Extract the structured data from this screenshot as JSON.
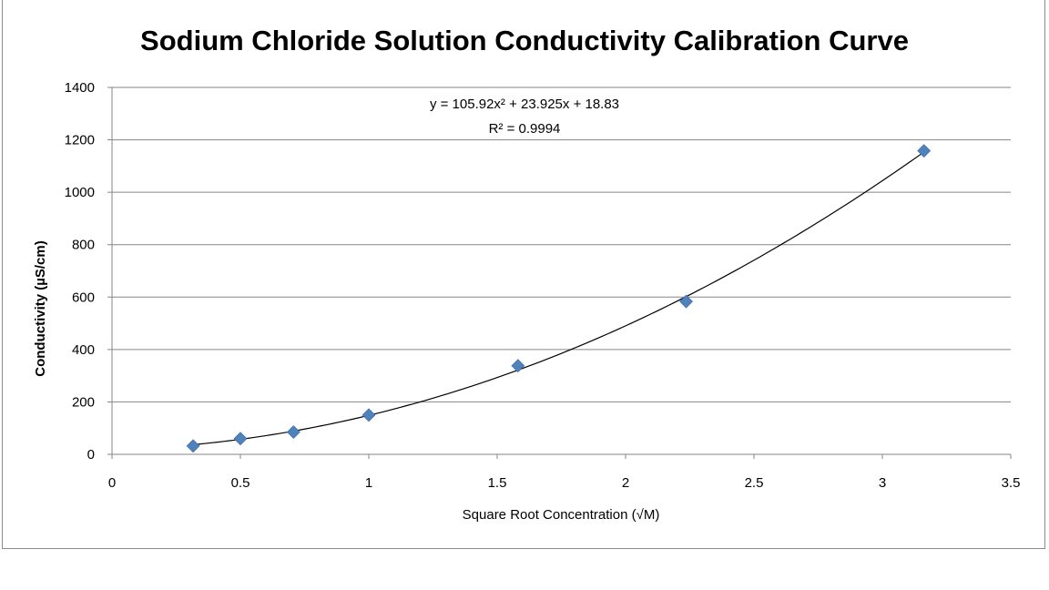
{
  "chart_data": {
    "type": "scatter",
    "title": "Sodium Chloride Solution Conductivity Calibration Curve",
    "xlabel": "Square Root Concentration (√M)",
    "ylabel": "Conductivity  (µS/cm)",
    "xlim": [
      0,
      3.5
    ],
    "ylim": [
      0,
      1400
    ],
    "x_ticks": [
      0,
      0.5,
      1,
      1.5,
      2,
      2.5,
      3,
      3.5
    ],
    "x_tick_labels": [
      "0",
      "0.5",
      "1",
      "1.5",
      "2",
      "2.5",
      "3",
      "3.5"
    ],
    "y_ticks": [
      0,
      200,
      400,
      600,
      800,
      1000,
      1200,
      1400
    ],
    "y_tick_labels": [
      "0",
      "200",
      "400",
      "600",
      "800",
      "1000",
      "1200",
      "1400"
    ],
    "grid": {
      "horizontal": true,
      "vertical": false
    },
    "series": [
      {
        "marker": "diamond",
        "color": "#4f81bd",
        "x": [
          0.316,
          0.5,
          0.707,
          1.0,
          1.581,
          2.236,
          3.162
        ],
        "y": [
          32,
          60,
          85,
          150,
          338,
          583,
          1158
        ]
      }
    ],
    "trendline": {
      "type": "polynomial",
      "order": 2,
      "coefficients": [
        105.92,
        23.925,
        18.83
      ],
      "x_range": [
        0.316,
        3.162
      ],
      "color": "#000000",
      "equation_text": "y = 105.92x² + 23.925x + 18.83",
      "r2_text": "R² = 0.9994"
    }
  },
  "colors": {
    "marker": "#4f81bd",
    "gridline": "#868686",
    "axis": "#868686",
    "frame": "#8c8c8c"
  }
}
